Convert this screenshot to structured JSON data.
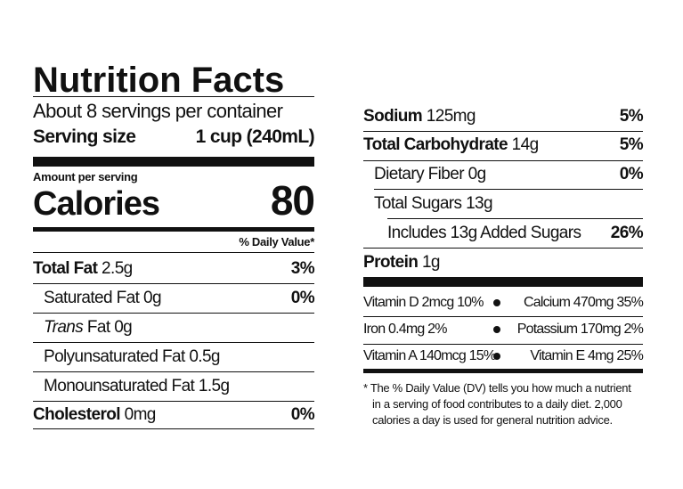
{
  "title": "Nutrition Facts",
  "servings_per_container": "About 8 servings per container",
  "serving_size": {
    "label": "Serving size",
    "value": "1 cup (240mL)"
  },
  "amount_per_serving": "Amount per serving",
  "calories": {
    "label": "Calories",
    "value": "80"
  },
  "daily_value_header": "% Daily Value*",
  "left_rows": [
    {
      "label": "Total Fat",
      "amount": "2.5g",
      "dv": "3%"
    },
    {
      "label": "Saturated Fat 0g",
      "amount": "",
      "dv": "0%"
    },
    {
      "label": "Trans",
      "amount": "Fat 0g",
      "dv": ""
    },
    {
      "label": "Polyunsaturated Fat 0.5g",
      "amount": "",
      "dv": ""
    },
    {
      "label": "Monounsaturated Fat 1.5g",
      "amount": "",
      "dv": ""
    },
    {
      "label": "Cholesterol",
      "amount": "0mg",
      "dv": "0%"
    }
  ],
  "right_rows": [
    {
      "label": "Sodium",
      "amount": "125mg",
      "dv": "5%"
    },
    {
      "label": "Total Carbohydrate",
      "amount": "14g",
      "dv": "5%"
    },
    {
      "label": "Dietary Fiber 0g",
      "amount": "",
      "dv": "0%"
    },
    {
      "label": "Total Sugars 13g",
      "amount": "",
      "dv": ""
    },
    {
      "label": "Includes 13g Added Sugars",
      "amount": "",
      "dv": "26%"
    },
    {
      "label": "Protein",
      "amount": "1g",
      "dv": ""
    }
  ],
  "vitamins": [
    {
      "left": "Vitamin D 2mcg 10%",
      "right": "Calcium 470mg 35%"
    },
    {
      "left": "Iron 0.4mg 2%",
      "right": "Potassium 170mg 2%"
    },
    {
      "left": "Vitamin A 140mcg 15%",
      "right": "Vitamin E 4mg 25%"
    }
  ],
  "footnote": [
    "* The % Daily Value (DV) tells you how much a nutrient",
    "in a serving of food contributes to a daily diet. 2,000",
    "calories a day is used for general nutrition advice."
  ]
}
